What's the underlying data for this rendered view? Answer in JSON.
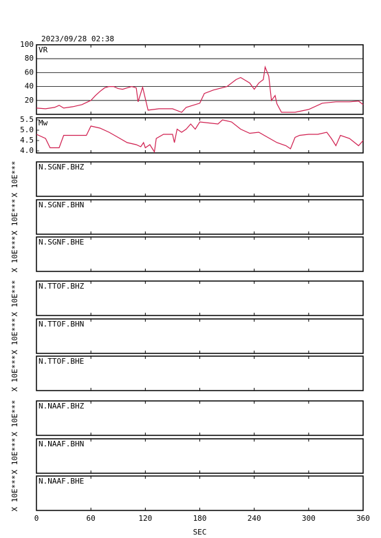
{
  "chart_data": [
    {
      "type": "line",
      "title": "2023/09/28 02:38",
      "label": "VR",
      "color": "#d02050",
      "x": [
        0,
        10,
        20,
        25,
        30,
        40,
        50,
        55,
        60,
        65,
        70,
        75,
        80,
        85,
        90,
        95,
        100,
        105,
        110,
        112,
        117,
        123,
        135,
        150,
        160,
        165,
        180,
        185,
        195,
        210,
        220,
        225,
        235,
        240,
        245,
        250,
        252,
        256,
        259,
        263,
        265,
        270,
        285,
        300,
        315,
        330,
        345,
        355,
        360
      ],
      "values": [
        9,
        8,
        10,
        13,
        9,
        11,
        14,
        17,
        20,
        27,
        33,
        38,
        40,
        40,
        37,
        36,
        38,
        40,
        38,
        18,
        39,
        6,
        8,
        8,
        3,
        10,
        16,
        30,
        35,
        40,
        50,
        53,
        45,
        36,
        45,
        50,
        68,
        55,
        20,
        27,
        15,
        3,
        3,
        7,
        16,
        18,
        18,
        19,
        14
      ],
      "ylim": [
        0,
        100
      ],
      "yticks": [
        20,
        40,
        60,
        80,
        100
      ],
      "grid": true
    },
    {
      "type": "line",
      "label": "Mw",
      "color": "#d02050",
      "x": [
        0,
        10,
        15,
        25,
        30,
        45,
        55,
        60,
        70,
        80,
        90,
        100,
        110,
        115,
        118,
        120,
        125,
        130,
        132,
        140,
        150,
        152,
        155,
        160,
        165,
        170,
        175,
        180,
        190,
        200,
        205,
        215,
        225,
        235,
        245,
        255,
        265,
        275,
        280,
        285,
        290,
        300,
        310,
        320,
        325,
        330,
        335,
        345,
        355,
        360
      ],
      "values": [
        4.8,
        4.6,
        4.15,
        4.15,
        4.75,
        4.75,
        4.75,
        5.2,
        5.1,
        4.9,
        4.65,
        4.4,
        4.3,
        4.2,
        4.4,
        4.15,
        4.3,
        3.95,
        4.6,
        4.8,
        4.8,
        4.4,
        5.05,
        4.9,
        5.05,
        5.3,
        5.05,
        5.4,
        5.35,
        5.3,
        5.5,
        5.4,
        5.05,
        4.85,
        4.9,
        4.65,
        4.4,
        4.25,
        4.1,
        4.65,
        4.75,
        4.8,
        4.8,
        4.9,
        4.6,
        4.25,
        4.75,
        4.6,
        4.25,
        4.5
      ],
      "ylim": [
        3.9,
        5.6
      ],
      "yticks": [
        {
          "value": 4,
          "label": "4.0"
        },
        4.5,
        {
          "value": 5,
          "label": "5.0"
        },
        5.5
      ],
      "grid": false
    },
    {
      "type": "line",
      "label": "N.SGNF.BHZ",
      "ylabel": "X 10E***"
    },
    {
      "type": "line",
      "label": "N.SGNF.BHN",
      "ylabel": "X 10E***"
    },
    {
      "type": "line",
      "label": "N.SGNF.BHE",
      "ylabel": "X 10E***"
    },
    {
      "type": "line",
      "label": "N.TTOF.BHZ",
      "ylabel": "X 10E***"
    },
    {
      "type": "line",
      "label": "N.TTOF.BHN",
      "ylabel": "X 10E***"
    },
    {
      "type": "line",
      "label": "N.TTOF.BHE",
      "ylabel": "X 10E***"
    },
    {
      "type": "line",
      "label": "N.NAAF.BHZ",
      "ylabel": "X 10E***"
    },
    {
      "type": "line",
      "label": "N.NAAF.BHN",
      "ylabel": "X 10E***"
    },
    {
      "type": "line",
      "label": "N.NAAF.BHE",
      "ylabel": "X 10E***",
      "xlim": [
        0,
        360
      ],
      "xticks": [
        0,
        60,
        120,
        180,
        240,
        300,
        360
      ],
      "xlabel": "SEC"
    }
  ]
}
